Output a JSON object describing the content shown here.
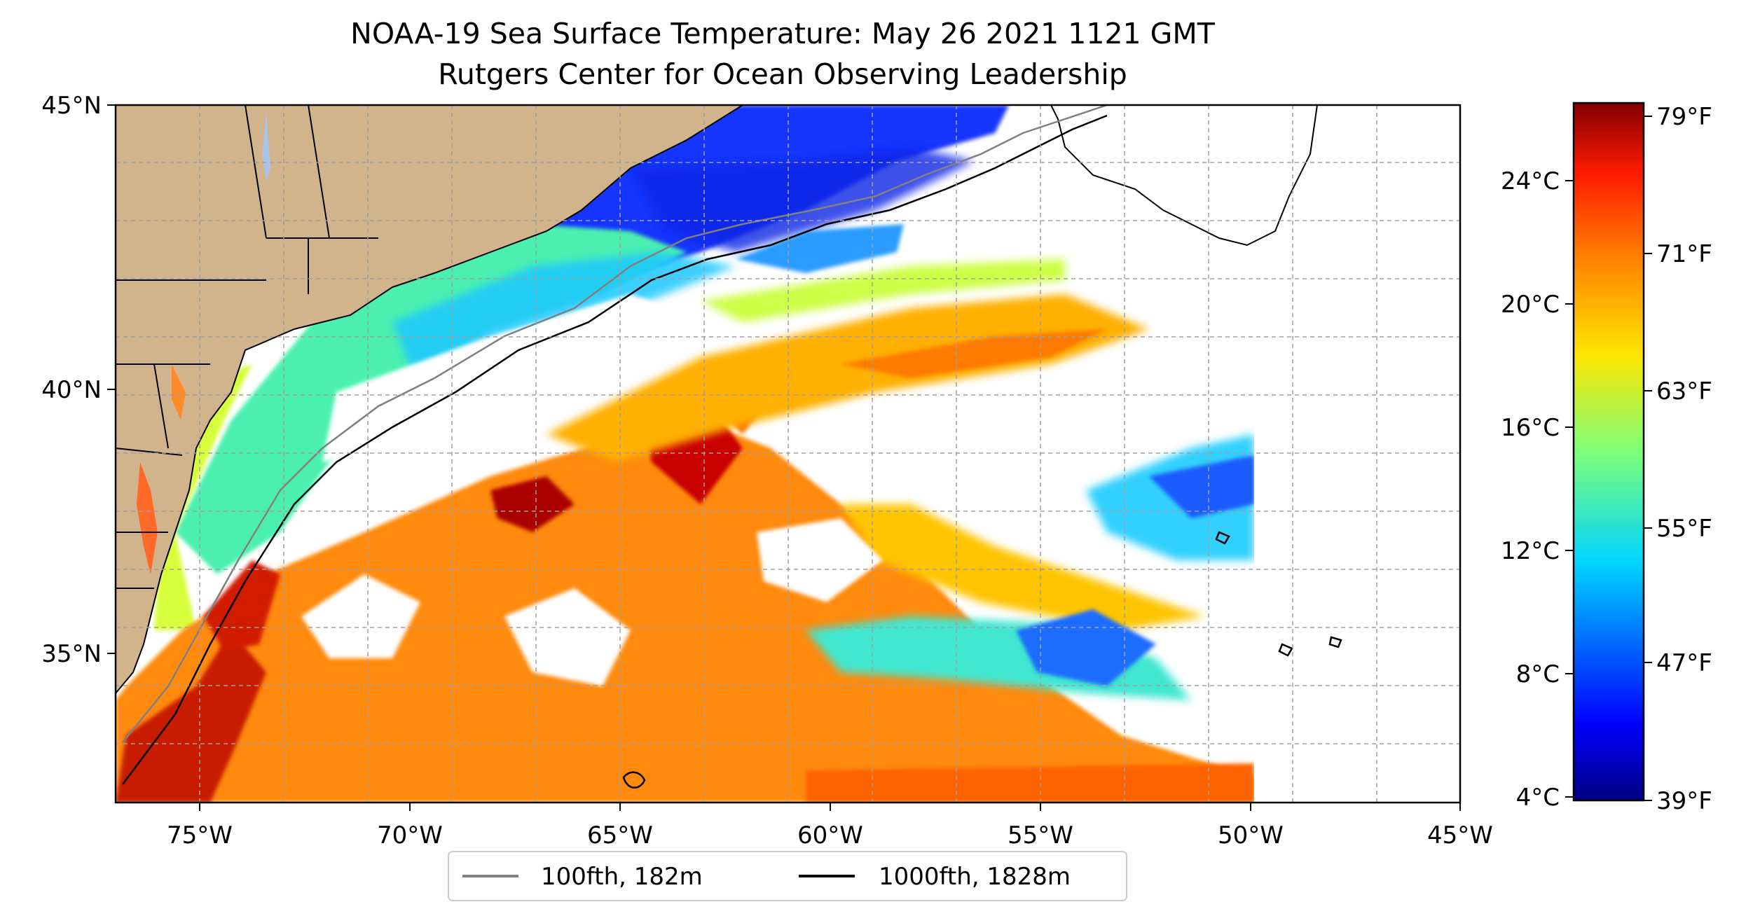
{
  "title": "NOAA-19 Sea Surface Temperature: May 26 2021 1121 GMT",
  "subtitle": "Rutgers Center for Ocean Observing Leadership",
  "map": {
    "lat_ticks": [
      "45°N",
      "40°N",
      "35°N"
    ],
    "lon_ticks": [
      "75°W",
      "70°W",
      "65°W",
      "60°W",
      "55°W",
      "50°W",
      "45°W"
    ],
    "lon_range": [
      -77,
      -45
    ],
    "lat_range": [
      32.2,
      45
    ],
    "land_color": "#d2b48c",
    "grid": "dashed"
  },
  "legend": [
    {
      "label": "100fth, 182m",
      "color": "#808080"
    },
    {
      "label": "1000fth, 1828m",
      "color": "#000000"
    }
  ],
  "colorbar": {
    "celsius_ticks": [
      "24°C",
      "20°C",
      "16°C",
      "12°C",
      "8°C",
      "4°C"
    ],
    "fahrenheit_ticks": [
      "79°F",
      "71°F",
      "63°F",
      "55°F",
      "47°F",
      "39°F"
    ],
    "colormap": "jet"
  }
}
